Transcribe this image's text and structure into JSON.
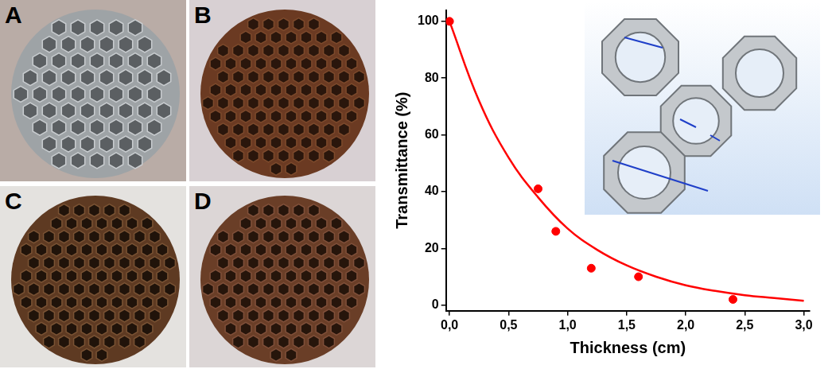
{
  "photos": {
    "labels": [
      "A",
      "B",
      "C",
      "D"
    ]
  },
  "chart_data": {
    "type": "scatter",
    "x_label": "Thickness (cm)",
    "y_label": "Transmittance (%)",
    "xlim": [
      -0.03,
      3.05
    ],
    "xticks": [
      {
        "value": 0,
        "label": "0,0"
      },
      {
        "value": 0.5,
        "label": "0,5"
      },
      {
        "value": 1,
        "label": "1,0"
      },
      {
        "value": 1.5,
        "label": "1,5"
      },
      {
        "value": 2,
        "label": "2,0"
      },
      {
        "value": 2.5,
        "label": "2,5"
      },
      {
        "value": 3,
        "label": "3,0"
      }
    ],
    "ylim": [
      -2,
      104
    ],
    "yticks": [
      0,
      20,
      40,
      60,
      80,
      100
    ],
    "grid": false,
    "series": [
      {
        "type": "scatter",
        "color": "#ff0000",
        "marker": "circle",
        "x": [
          0,
          0.75,
          0.9,
          1.2,
          1.6,
          2.4
        ],
        "values": [
          100,
          41,
          26,
          13,
          10,
          2
        ]
      },
      {
        "type": "line",
        "color": "#ff0000",
        "line_style": "solid",
        "x": [
          0,
          0.25,
          0.5,
          0.75,
          1.0,
          1.25,
          1.5,
          1.75,
          2.0,
          2.25,
          2.5,
          2.75,
          3.0
        ],
        "values": [
          100,
          72,
          52,
          38,
          27,
          19.5,
          14,
          10,
          7,
          5,
          3.5,
          2.5,
          1.5
        ]
      }
    ]
  }
}
